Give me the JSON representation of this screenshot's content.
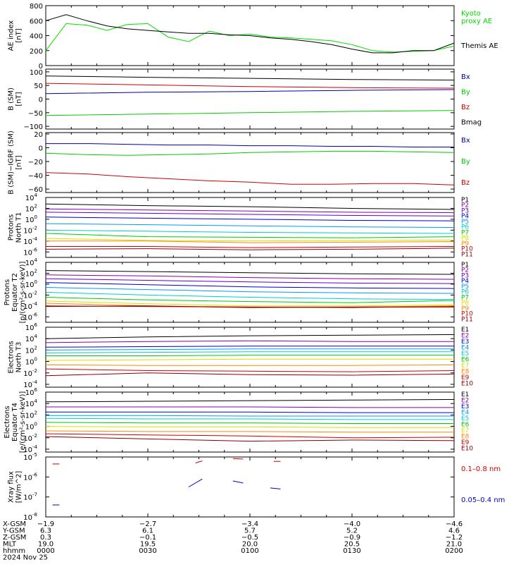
{
  "chart_data": [
    {
      "type": "line",
      "ylabel_lines": [
        "AE index",
        "[nT]"
      ],
      "ylim": [
        0,
        800
      ],
      "yticks": [
        0,
        200,
        400,
        600,
        800
      ],
      "ytick_labels": [
        "0",
        "200",
        "400",
        "600",
        "800"
      ],
      "x": [
        0,
        6,
        12,
        18,
        24,
        30,
        36,
        42,
        48,
        54,
        60,
        66,
        72,
        78,
        84,
        90,
        96,
        102,
        108,
        114,
        120
      ],
      "series": [
        {
          "name": "Kyoto proxy AE",
          "label_lines": [
            "Kyoto",
            "proxy AE"
          ],
          "color": "#00dd00",
          "values": [
            200,
            560,
            540,
            470,
            550,
            560,
            380,
            320,
            460,
            400,
            420,
            380,
            370,
            350,
            330,
            280,
            200,
            180,
            190,
            200,
            260
          ]
        },
        {
          "name": "Themis AE",
          "label_lines": [
            "Themis AE"
          ],
          "color": "#000000",
          "values": [
            600,
            680,
            600,
            530,
            490,
            470,
            450,
            430,
            430,
            410,
            400,
            370,
            350,
            320,
            280,
            220,
            170,
            170,
            200,
            200,
            300
          ]
        }
      ]
    },
    {
      "type": "line",
      "ylabel_lines": [
        "B (SM)",
        "[nT]"
      ],
      "ylim": [
        -110,
        110
      ],
      "yticks": [
        -100,
        -50,
        0,
        50,
        100
      ],
      "ytick_labels": [
        "−100",
        "−50",
        "0",
        "50",
        "100"
      ],
      "x": [
        0,
        30,
        60,
        90,
        120
      ],
      "series": [
        {
          "name": "Bx",
          "color": "#0000aa",
          "values": [
            20,
            25,
            28,
            32,
            35
          ]
        },
        {
          "name": "By",
          "color": "#00cc00",
          "values": [
            -60,
            -55,
            -50,
            -45,
            -42
          ]
        },
        {
          "name": "Bz",
          "color": "#cc0000",
          "values": [
            58,
            52,
            46,
            42,
            40
          ]
        },
        {
          "name": "Bmag",
          "color": "#000000",
          "values": [
            85,
            80,
            76,
            72,
            70
          ]
        }
      ]
    },
    {
      "type": "line",
      "ylabel_lines": [
        "B (SM)−IGRF (SM)",
        "[nT]"
      ],
      "ylim": [
        -65,
        22
      ],
      "yticks": [
        -60,
        -40,
        -20,
        0,
        20
      ],
      "ytick_labels": [
        "−60",
        "−40",
        "−20",
        "0",
        "20"
      ],
      "x": [
        0,
        12,
        24,
        36,
        48,
        60,
        72,
        84,
        96,
        108,
        120
      ],
      "series": [
        {
          "name": "Bx",
          "color": "#0000aa",
          "values": [
            6,
            6,
            5,
            4,
            4,
            3,
            3,
            2,
            2,
            1,
            1
          ]
        },
        {
          "name": "By",
          "color": "#00cc00",
          "values": [
            -8,
            -10,
            -11,
            -10,
            -9,
            -7,
            -6,
            -5,
            -5,
            -6,
            -7
          ]
        },
        {
          "name": "Bz",
          "color": "#cc0000",
          "values": [
            -36,
            -38,
            -42,
            -45,
            -48,
            -50,
            -53,
            -53,
            -52,
            -52,
            -54
          ]
        }
      ]
    },
    {
      "type": "line",
      "log": true,
      "ylabel_lines": [
        "Protons",
        "North T1"
      ],
      "ylim_exp": [
        -7,
        4
      ],
      "ytick_exps": [
        -6,
        -4,
        -2,
        0,
        2,
        4
      ],
      "x": [
        0,
        30,
        60,
        90,
        120
      ],
      "series": [
        {
          "name": "P1",
          "color": "#000000",
          "values": [
            2.8,
            2.5,
            2.3,
            2.0,
            1.8
          ]
        },
        {
          "name": "P2",
          "color": "#8800aa",
          "values": [
            1.9,
            1.7,
            1.5,
            1.3,
            1.2
          ]
        },
        {
          "name": "P3",
          "color": "#6600cc",
          "values": [
            1.3,
            1.1,
            0.9,
            0.7,
            0.6
          ]
        },
        {
          "name": "P4",
          "color": "#0000cc",
          "values": [
            0.4,
            0.2,
            0.0,
            -0.2,
            -0.3
          ]
        },
        {
          "name": "P5",
          "color": "#0099ff",
          "values": [
            -0.8,
            -1.0,
            -1.2,
            -1.4,
            -1.5
          ]
        },
        {
          "name": "P6",
          "color": "#00cccc",
          "values": [
            -2.0,
            -2.2,
            -2.4,
            -2.5,
            -2.6
          ]
        },
        {
          "name": "P7",
          "color": "#00cc00",
          "values": [
            -2.6,
            -3.2,
            -3.3,
            -3.4,
            -3.2
          ]
        },
        {
          "name": "P8",
          "color": "#dddd00",
          "values": [
            -3.5,
            -3.9,
            -4.0,
            -3.9,
            -3.8
          ]
        },
        {
          "name": "P9",
          "color": "#ff8800",
          "values": [
            -4.0,
            -4.0,
            -4.3,
            -4.2,
            -4.1
          ]
        },
        {
          "name": "P10",
          "color": "#cc0000",
          "values": [
            -5.0,
            -5.0,
            -5.2,
            -5.1,
            -5.0
          ]
        },
        {
          "name": "P11",
          "color": "#880000",
          "values": [
            -5.5,
            -5.4,
            -5.6,
            -5.5,
            -5.3
          ]
        }
      ]
    },
    {
      "type": "line",
      "log": true,
      "ylabel_lines": [
        "Protons",
        "Equator T2",
        "[p/(cm²-s-sr-keV)]"
      ],
      "ylim_exp": [
        -7,
        4
      ],
      "ytick_exps": [
        -6,
        -4,
        -2,
        0,
        2,
        4
      ],
      "x": [
        0,
        30,
        60,
        90,
        120
      ],
      "series": [
        {
          "name": "P1",
          "color": "#000000",
          "values": [
            2.5,
            2.3,
            2.1,
            1.9,
            1.8
          ]
        },
        {
          "name": "P2",
          "color": "#8800aa",
          "values": [
            1.7,
            1.5,
            1.2,
            1.0,
            0.9
          ]
        },
        {
          "name": "P3",
          "color": "#6600cc",
          "values": [
            1.0,
            0.7,
            0.4,
            0.2,
            0.1
          ]
        },
        {
          "name": "P4",
          "color": "#0000cc",
          "values": [
            0.3,
            -0.1,
            -0.5,
            -0.7,
            -0.8
          ]
        },
        {
          "name": "P5",
          "color": "#0099ff",
          "values": [
            -0.6,
            -1.0,
            -1.4,
            -1.6,
            -1.7
          ]
        },
        {
          "name": "P6",
          "color": "#00cccc",
          "values": [
            -1.5,
            -2.0,
            -2.4,
            -2.7,
            -2.8
          ]
        },
        {
          "name": "P7",
          "color": "#00cc00",
          "values": [
            -2.4,
            -2.9,
            -3.2,
            -3.4,
            -3.0
          ]
        },
        {
          "name": "P8",
          "color": "#dddd00",
          "values": [
            -3.1,
            -3.6,
            -4.0,
            -4.0,
            -3.8
          ]
        },
        {
          "name": "P9",
          "color": "#ff8800",
          "values": [
            -3.5,
            -4.0,
            -4.2,
            -4.2,
            -4.0
          ]
        },
        {
          "name": "P10",
          "color": "#cc0000",
          "values": [
            -4.0,
            -4.1,
            -4.2,
            -4.3,
            -4.1
          ]
        },
        {
          "name": "P11",
          "color": "#880000",
          "values": [
            -4.1,
            -4.0,
            -4.3,
            -4.2,
            -4.2
          ]
        }
      ]
    },
    {
      "type": "line",
      "log": true,
      "ylabel_lines": [
        "Electrons",
        "North T3"
      ],
      "ylim_exp": [
        -4.5,
        6
      ],
      "ytick_exps": [
        -4,
        -2,
        0,
        2,
        4,
        6
      ],
      "x": [
        0,
        30,
        60,
        90,
        120
      ],
      "series": [
        {
          "name": "E1",
          "color": "#000000",
          "values": [
            4.0,
            4.3,
            4.5,
            4.6,
            4.7
          ]
        },
        {
          "name": "E2",
          "color": "#8800aa",
          "values": [
            3.3,
            3.5,
            3.6,
            3.5,
            3.5
          ]
        },
        {
          "name": "E3",
          "color": "#0000cc",
          "values": [
            2.5,
            2.6,
            2.7,
            2.7,
            2.7
          ]
        },
        {
          "name": "E4",
          "color": "#0099ff",
          "values": [
            2.0,
            2.1,
            2.2,
            2.2,
            2.2
          ]
        },
        {
          "name": "E5",
          "color": "#00cccc",
          "values": [
            1.5,
            1.6,
            1.7,
            1.7,
            1.7
          ]
        },
        {
          "name": "E6",
          "color": "#00cc00",
          "values": [
            1.0,
            1.0,
            1.1,
            1.1,
            1.1
          ]
        },
        {
          "name": "E7",
          "color": "#dddd00",
          "values": [
            0.2,
            0.3,
            0.4,
            0.4,
            0.4
          ]
        },
        {
          "name": "E8",
          "color": "#ff8800",
          "values": [
            -0.6,
            -0.7,
            -0.7,
            -0.7,
            -0.6
          ]
        },
        {
          "name": "E9",
          "color": "#cc0000",
          "values": [
            -1.3,
            -1.6,
            -1.7,
            -1.8,
            -1.6
          ]
        },
        {
          "name": "E10",
          "color": "#880000",
          "values": [
            -2.5,
            -2.0,
            -2.3,
            -2.4,
            -2.2
          ]
        }
      ]
    },
    {
      "type": "line",
      "log": true,
      "ylabel_lines": [
        "Electrons",
        "Equator T4",
        "[e/(cm²-s-sr-keV)]"
      ],
      "ylim_exp": [
        -4.5,
        6
      ],
      "ytick_exps": [
        -4,
        -2,
        0,
        2,
        4,
        6
      ],
      "x": [
        0,
        30,
        60,
        90,
        120
      ],
      "series": [
        {
          "name": "E1",
          "color": "#000000",
          "values": [
            4.3,
            4.4,
            4.5,
            4.6,
            4.7
          ]
        },
        {
          "name": "E2",
          "color": "#8800aa",
          "values": [
            3.4,
            3.4,
            3.4,
            3.3,
            3.3
          ]
        },
        {
          "name": "E3",
          "color": "#0000cc",
          "values": [
            2.5,
            2.5,
            2.5,
            2.4,
            2.4
          ]
        },
        {
          "name": "E4",
          "color": "#0099ff",
          "values": [
            1.9,
            1.9,
            1.8,
            1.8,
            1.8
          ]
        },
        {
          "name": "E5",
          "color": "#00cccc",
          "values": [
            1.4,
            1.3,
            1.3,
            1.2,
            1.2
          ]
        },
        {
          "name": "E6",
          "color": "#00cc00",
          "values": [
            0.7,
            0.6,
            0.6,
            0.5,
            0.5
          ]
        },
        {
          "name": "E7",
          "color": "#dddd00",
          "values": [
            0.0,
            -0.1,
            -0.1,
            -0.2,
            -0.2
          ]
        },
        {
          "name": "E8",
          "color": "#ff8800",
          "values": [
            -0.8,
            -0.9,
            -0.9,
            -1.0,
            -1.0
          ]
        },
        {
          "name": "E9",
          "color": "#cc0000",
          "values": [
            -1.3,
            -1.5,
            -1.7,
            -2.0,
            -1.9
          ]
        },
        {
          "name": "E10",
          "color": "#880000",
          "values": [
            -1.8,
            -2.2,
            -2.6,
            -2.4,
            -2.5
          ]
        }
      ]
    },
    {
      "type": "scatter",
      "log": true,
      "ylabel_lines": [
        "Xray flux",
        "[W/m^2]"
      ],
      "ylim_exp": [
        -8,
        -5
      ],
      "ytick_exps": [
        -8,
        -7,
        -6,
        -5
      ],
      "series": [
        {
          "name": "0.1–0.8 nm",
          "color": "#cc0000",
          "segments": [
            [
              [
                2,
                -5.35
              ],
              [
                4,
                -5.35
              ]
            ],
            [
              [
                44,
                -5.3
              ],
              [
                46,
                -5.2
              ]
            ],
            [
              [
                55,
                -5.08
              ],
              [
                58,
                -5.1
              ]
            ],
            [
              [
                67,
                -5.22
              ],
              [
                69,
                -5.22
              ]
            ]
          ]
        },
        {
          "name": "0.05–0.4 nm",
          "color": "#0000cc",
          "segments": [
            [
              [
                2,
                -7.4
              ],
              [
                4,
                -7.4
              ]
            ],
            [
              [
                42,
                -6.5
              ],
              [
                46,
                -6.1
              ]
            ],
            [
              [
                55,
                -6.2
              ],
              [
                58,
                -6.3
              ]
            ],
            [
              [
                66,
                -6.55
              ],
              [
                69,
                -6.6
              ]
            ]
          ]
        }
      ]
    }
  ],
  "xlim": [
    0,
    120
  ],
  "xaxis_rows": [
    {
      "label": "X-GSM",
      "values": [
        "−1.9",
        "−2.7",
        "−3.4",
        "−4.0",
        "−4.6"
      ]
    },
    {
      "label": "Y-GSM",
      "values": [
        "6.3",
        "6.1",
        "5.7",
        "5.2",
        "4.6"
      ]
    },
    {
      "label": "Z-GSM",
      "values": [
        "0.3",
        "−0.1",
        "−0.5",
        "−0.9",
        "−1.2"
      ]
    },
    {
      "label": "MLT",
      "values": [
        "19.0",
        "19.5",
        "20.0",
        "20.5",
        "21.0"
      ]
    },
    {
      "label": "hhmm",
      "values": [
        "0000",
        "0030",
        "0100",
        "0130",
        "0200"
      ]
    }
  ],
  "date_label": "2024 Nov 25"
}
